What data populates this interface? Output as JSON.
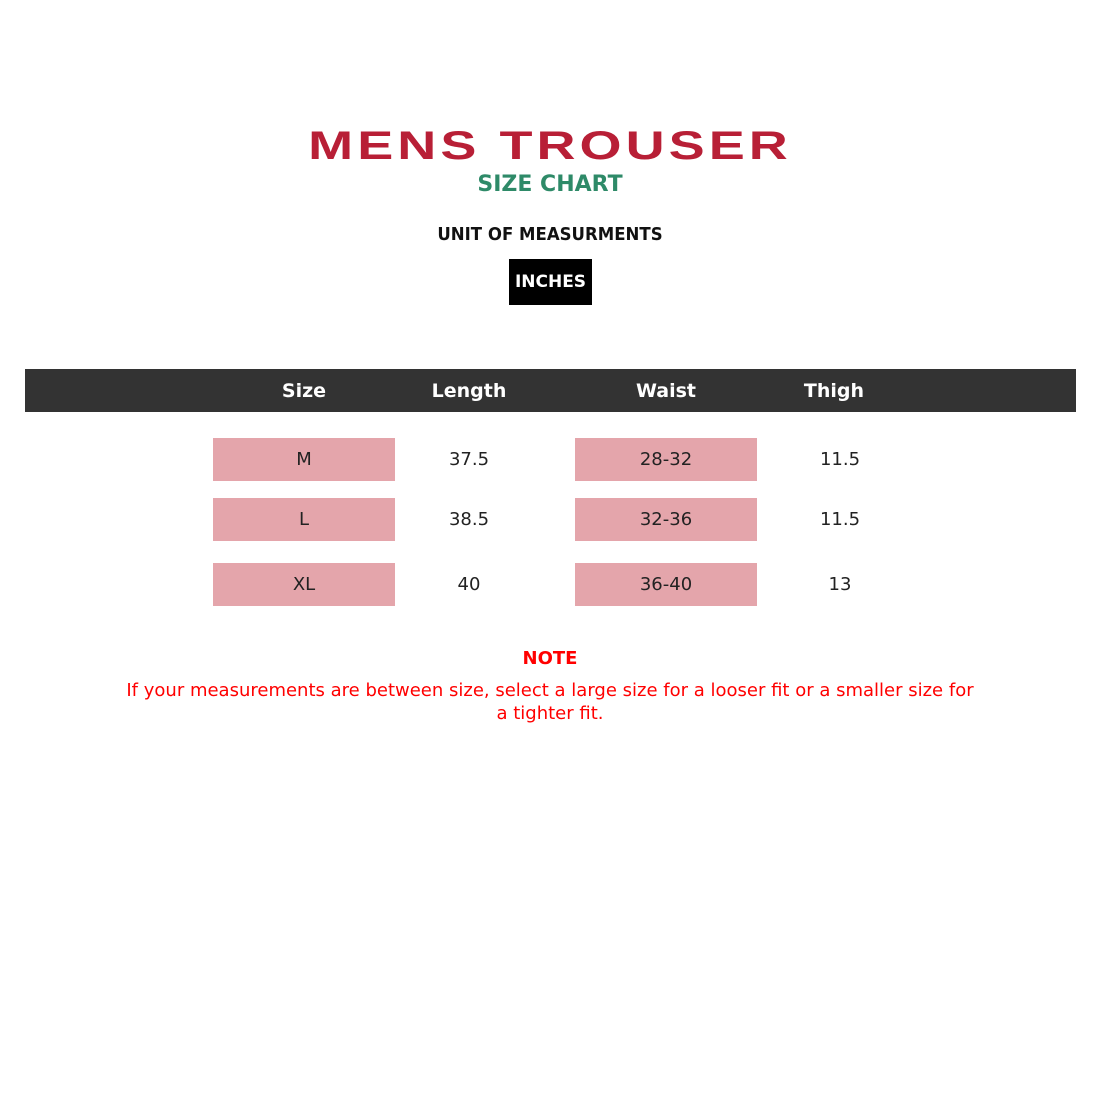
{
  "title": "MENS TROUSER",
  "subtitle": "SIZE CHART",
  "unit_label": "UNIT OF MEASURMENTS",
  "unit": "INCHES",
  "colors": {
    "title": "#b81f36",
    "subtitle": "#2e8a68",
    "header_bg": "#333333",
    "highlight": "#e4a5ab",
    "note": "#ff0000"
  },
  "table": {
    "headers": [
      "Size",
      "Length",
      "Waist",
      "Thigh"
    ],
    "rows": [
      {
        "size": "M",
        "length": "37.5",
        "waist": "28-32",
        "thigh": "11.5"
      },
      {
        "size": "L",
        "length": "38.5",
        "waist": "32-36",
        "thigh": "11.5"
      },
      {
        "size": "XL",
        "length": "40",
        "waist": "36-40",
        "thigh": "13"
      }
    ]
  },
  "note": {
    "title": "NOTE",
    "text": "If your measurements are between size, select a large size for a looser fit or a smaller size for a tighter fit."
  }
}
